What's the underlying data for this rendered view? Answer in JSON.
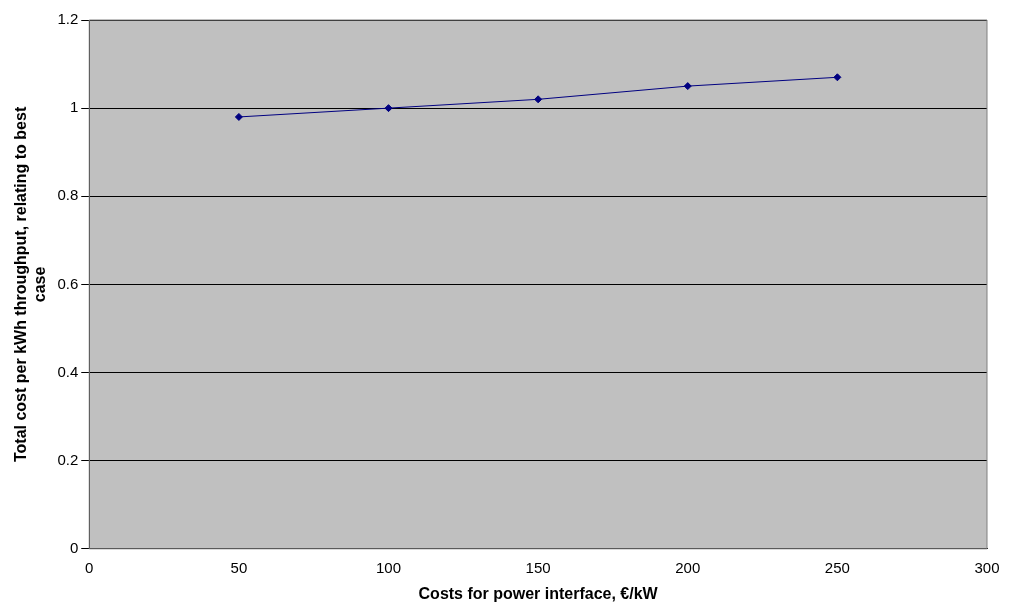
{
  "chart_data": {
    "type": "line",
    "xlabel": "Costs for power interface, €/kW",
    "ylabel": "Total cost per kWh throughput, relating to best case",
    "x": [
      50,
      100,
      150,
      200,
      250
    ],
    "series": [
      {
        "color": "#000080",
        "values": [
          0.98,
          1.0,
          1.02,
          1.05,
          1.07
        ]
      }
    ],
    "xlim": [
      0,
      300
    ],
    "xticks": [
      0,
      50,
      100,
      150,
      200,
      250,
      300
    ],
    "ylim": [
      0,
      1.2
    ],
    "yticks": [
      0,
      0.2,
      0.4,
      0.6,
      0.8,
      1,
      1.2
    ],
    "grid": "y",
    "marker": "diamond",
    "line_style": "solid"
  }
}
